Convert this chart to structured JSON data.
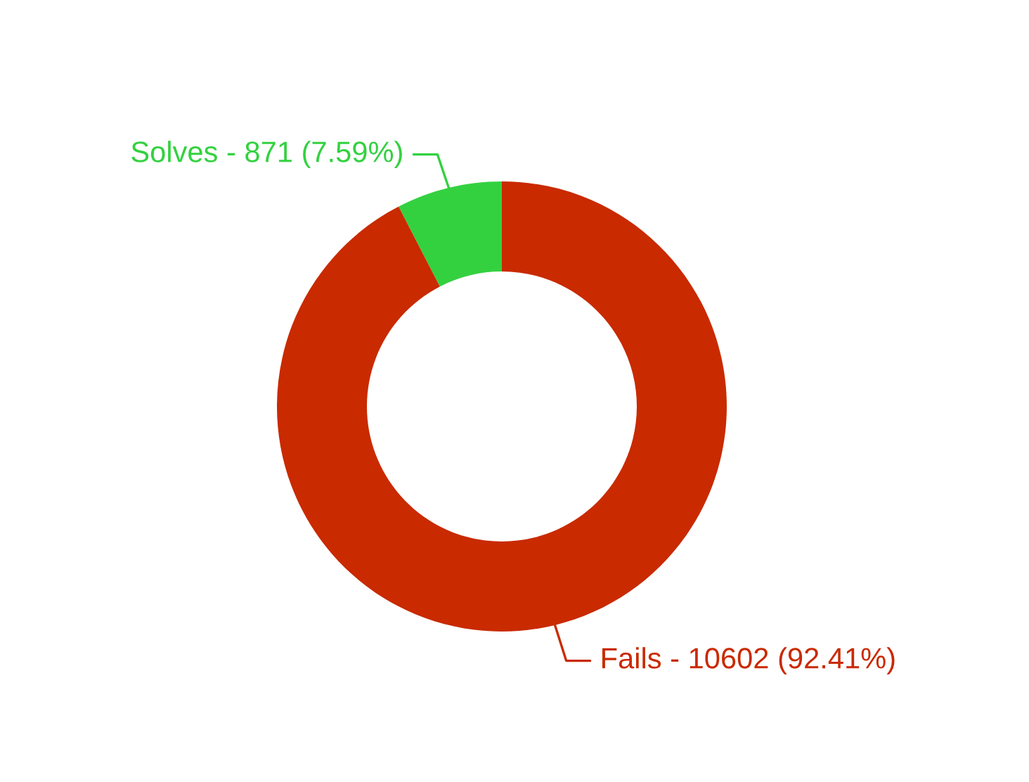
{
  "chart_data": {
    "type": "donut",
    "categories": [
      "Solves",
      "Fails"
    ],
    "values": [
      871,
      10602
    ],
    "value_labels": [
      "871 (7.59%)",
      "10602 (92.41%)"
    ],
    "colors": [
      "#33d140",
      "#c92a00"
    ]
  }
}
